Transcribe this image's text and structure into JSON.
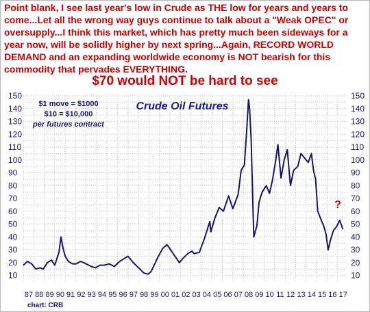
{
  "commentary": {
    "part1": "Point blank, I see last year's low in Crude as ",
    "emph1": "THE",
    "part2": " low for years and years to come...Let all the wrong way guys continue to talk about a \"Weak OPEC\" or oversupply...I think this market, which has pretty much been sideways for a year now, will be solidly higher by next spring...Again, ",
    "emph2": "RECORD WORLD DEMAND",
    "part3": " and an expanding worldwide economy is ",
    "emph3": "NOT",
    "part4": " bearish for this commodity that pervades ",
    "emph4": "EVERYTHING",
    "part5": "."
  },
  "headline": "$70 would NOT be hard to see",
  "notes": {
    "line1": "$1 move = $1000",
    "line2": "$10 = $10,000",
    "line3": "per futures contract"
  },
  "source": "chart: CRB",
  "question_mark": "?",
  "colors": {
    "text_red": "#cc0000",
    "line_navy": "#14146e",
    "title_blue": "#1a1aa0",
    "grid": "#bdbdbd"
  },
  "chart_data": {
    "type": "line",
    "title": "Crude Oil Futures",
    "ylim": [
      5,
      150
    ],
    "yticks": [
      10,
      20,
      30,
      40,
      50,
      60,
      70,
      80,
      90,
      100,
      110,
      120,
      130,
      140,
      150
    ],
    "ytick_labels": [
      "10",
      "20",
      "30",
      "40",
      "50",
      "60",
      "70",
      "80",
      "90",
      "100",
      "110",
      "120",
      "130",
      "140",
      "150"
    ],
    "xlim": [
      1987,
      2018
    ],
    "xticks": [
      1987,
      1988,
      1989,
      1990,
      1991,
      1992,
      1993,
      1994,
      1995,
      1996,
      1997,
      1998,
      1999,
      2000,
      2001,
      2002,
      2003,
      2004,
      2005,
      2006,
      2007,
      2008,
      2009,
      2010,
      2011,
      2012,
      2013,
      2014,
      2015,
      2016,
      2017
    ],
    "xtick_labels": [
      "87",
      "88",
      "89",
      "90",
      "91",
      "92",
      "93",
      "94",
      "95",
      "96",
      "97",
      "98",
      "99",
      "00",
      "01",
      "02",
      "03",
      "04",
      "05",
      "06",
      "07",
      "08",
      "09",
      "10",
      "11",
      "12",
      "13",
      "14",
      "15",
      "16",
      "17"
    ],
    "grid": true,
    "series": [
      {
        "x": [
          1987.0,
          1987.4,
          1987.8,
          1988.2,
          1988.6,
          1988.9,
          1989.3,
          1989.7,
          1990.0,
          1990.4,
          1990.6,
          1990.8,
          1991.0,
          1991.3,
          1991.7,
          1992.0,
          1992.5,
          1993.0,
          1993.5,
          1993.9,
          1994.3,
          1994.7,
          1995.2,
          1995.7,
          1996.2,
          1996.8,
          1997.0,
          1997.5,
          1998.0,
          1998.5,
          1998.9,
          1999.2,
          1999.6,
          1999.9,
          2000.3,
          2000.7,
          2000.9,
          2001.3,
          2001.9,
          2002.2,
          2002.7,
          2003.1,
          2003.3,
          2003.8,
          2004.3,
          2004.8,
          2004.9,
          2005.3,
          2005.7,
          2006.1,
          2006.6,
          2007.0,
          2007.5,
          2007.8,
          2008.1,
          2008.3,
          2008.5,
          2008.6,
          2008.75,
          2008.9,
          2009.0,
          2009.3,
          2009.5,
          2009.8,
          2010.2,
          2010.5,
          2010.8,
          2011.1,
          2011.3,
          2011.6,
          2011.9,
          2012.2,
          2012.5,
          2012.8,
          2013.2,
          2013.5,
          2013.8,
          2014.2,
          2014.5,
          2014.7,
          2014.9,
          2015.1,
          2015.4,
          2015.7,
          2015.9,
          2016.1,
          2016.3,
          2016.6,
          2016.9,
          2017.2,
          2017.5
        ],
        "y": [
          18,
          21,
          19,
          15,
          16,
          15,
          20,
          22,
          18,
          28,
          40,
          31,
          25,
          21,
          19,
          19,
          21,
          19,
          17,
          16,
          18,
          18,
          19,
          17,
          21,
          24,
          25,
          20,
          16,
          12,
          11,
          13,
          20,
          25,
          31,
          34,
          32,
          27,
          20,
          23,
          27,
          29,
          27,
          28,
          39,
          52,
          44,
          55,
          63,
          60,
          72,
          62,
          73,
          92,
          96,
          120,
          147,
          140,
          115,
          68,
          40,
          49,
          67,
          75,
          80,
          74,
          85,
          100,
          112,
          86,
          100,
          108,
          80,
          92,
          95,
          105,
          102,
          98,
          105,
          92,
          85,
          60,
          54,
          48,
          42,
          30,
          37,
          45,
          48,
          53,
          46
        ]
      }
    ]
  }
}
